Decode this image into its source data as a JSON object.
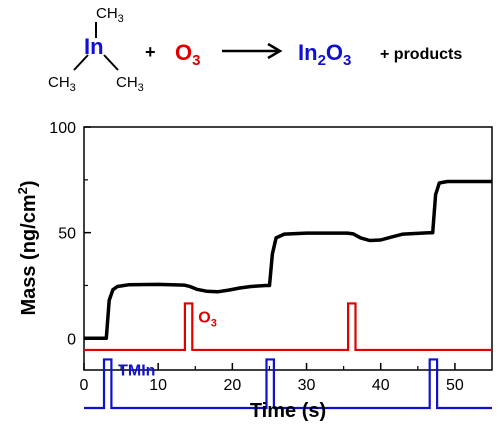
{
  "equation": {
    "reactant1": {
      "center": "In",
      "methyl_top": "CH",
      "methyl_top_sub": "3",
      "methyl_left": "CH",
      "methyl_left_sub": "3",
      "methyl_right": "CH",
      "methyl_right_sub": "3"
    },
    "plus1": "+",
    "reactant2": {
      "base": "O",
      "sub": "3"
    },
    "product": {
      "a": "In",
      "a_sub": "2",
      "b": "O",
      "b_sub": "3"
    },
    "byproducts": "+ products",
    "colors": {
      "indium": "#1010d0",
      "ozone": "#e00000",
      "text": "#000000"
    }
  },
  "chart_data": {
    "type": "line",
    "xlabel": "Time (s)",
    "ylabel": {
      "main": "Mass (ng/cm",
      "sup": "2",
      "end": ")"
    },
    "xlim": [
      0,
      55
    ],
    "ylim": [
      -15,
      100
    ],
    "xticks": [
      0,
      10,
      20,
      30,
      40,
      50
    ],
    "yticks": [
      0,
      50,
      100
    ],
    "grid": false,
    "series": [
      {
        "id": "mass",
        "color": "#000000",
        "points": [
          [
            0,
            0
          ],
          [
            3.0,
            0
          ],
          [
            3.4,
            18
          ],
          [
            3.9,
            23
          ],
          [
            4.5,
            24.5
          ],
          [
            6,
            25.3
          ],
          [
            10,
            25.5
          ],
          [
            13.5,
            25.2
          ],
          [
            14.2,
            24.6
          ],
          [
            15.2,
            23.2
          ],
          [
            16.5,
            22.3
          ],
          [
            18,
            22.0
          ],
          [
            19.5,
            22.8
          ],
          [
            21,
            23.8
          ],
          [
            22.5,
            24.5
          ],
          [
            24.5,
            25.0
          ],
          [
            25.0,
            25.0
          ],
          [
            25.4,
            40
          ],
          [
            25.9,
            47.5
          ],
          [
            27,
            49.3
          ],
          [
            30,
            49.8
          ],
          [
            35.5,
            49.8
          ],
          [
            36.3,
            49.4
          ],
          [
            37.3,
            47.5
          ],
          [
            38.5,
            46.3
          ],
          [
            40,
            46.5
          ],
          [
            41.5,
            48
          ],
          [
            43,
            49.3
          ],
          [
            46.5,
            50
          ],
          [
            47.0,
            50
          ],
          [
            47.4,
            68
          ],
          [
            47.9,
            73.5
          ],
          [
            49,
            74.2
          ],
          [
            55,
            74.2
          ]
        ]
      }
    ],
    "pulses": [
      {
        "label": "O",
        "label_sub": "3",
        "color": "#e00000",
        "baseline": -5.5,
        "height": 22,
        "intervals": [
          [
            13.6,
            14.6
          ],
          [
            35.6,
            36.6
          ]
        ],
        "label_x": 15.4,
        "label_y": 7.5
      },
      {
        "label": "TMIn",
        "label_sub": "",
        "color": "#1010d0",
        "baseline": -33,
        "height": 23,
        "intervals": [
          [
            2.7,
            3.7
          ],
          [
            24.6,
            25.6
          ],
          [
            46.6,
            47.6
          ]
        ],
        "label_x": 4.6,
        "label_y": -17.5
      }
    ]
  }
}
